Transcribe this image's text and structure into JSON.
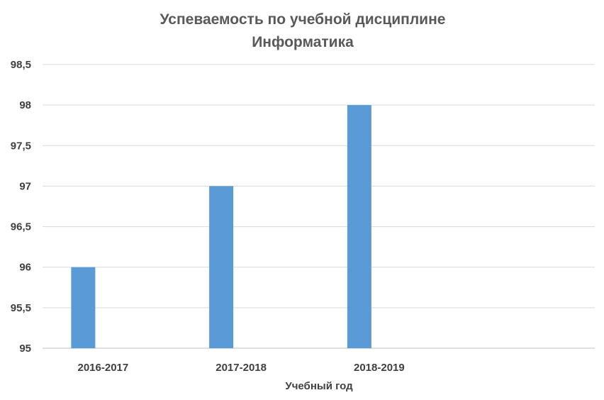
{
  "chart_data": {
    "type": "bar",
    "title_lines": [
      "Успеваемость по учебной дисциплине",
      "Информатика"
    ],
    "xlabel": "Учебный год",
    "ylabel": "",
    "categories": [
      "2016-2017",
      "2017-2018",
      "2018-2019",
      ""
    ],
    "values": [
      96,
      97,
      98,
      null
    ],
    "ylim": [
      95,
      98.5
    ],
    "yticks": [
      "95",
      "95,5",
      "96",
      "96,5",
      "97",
      "97,5",
      "98",
      "98,5"
    ],
    "grid": true,
    "legend": "none",
    "bar_color": "#5b9bd5"
  }
}
